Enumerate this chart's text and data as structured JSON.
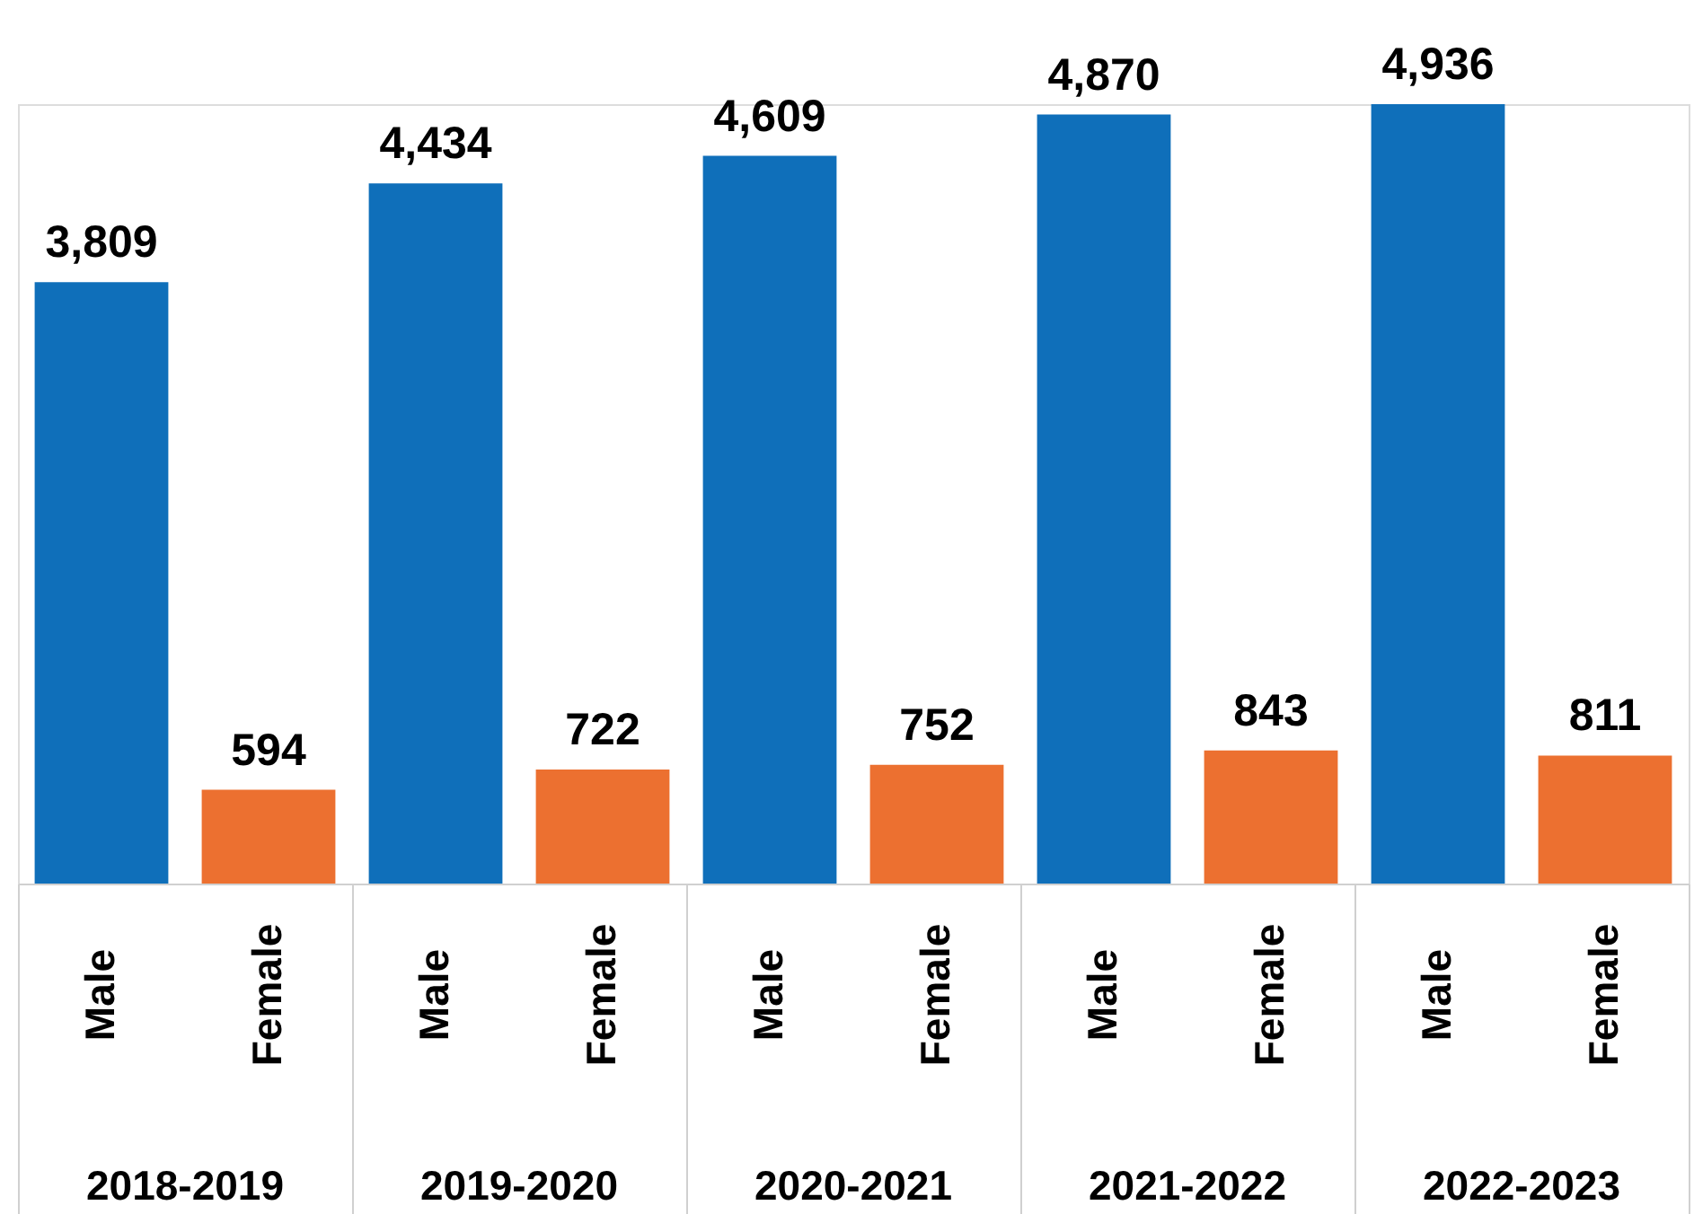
{
  "chart_data": {
    "type": "bar",
    "categories": [
      "2018-2019",
      "2019-2020",
      "2020-2021",
      "2021-2022",
      "2022-2023"
    ],
    "series": [
      {
        "name": "Male",
        "color": "#0f6fba",
        "values": [
          3809,
          4434,
          4609,
          4870,
          4936
        ],
        "value_labels": [
          "3,809",
          "4,434",
          "4,609",
          "4,870",
          "4,936"
        ]
      },
      {
        "name": "Female",
        "color": "#ec7030",
        "values": [
          594,
          722,
          752,
          843,
          811
        ],
        "value_labels": [
          "594",
          "722",
          "752",
          "843",
          "811"
        ]
      }
    ],
    "legend": false,
    "grid": false
  }
}
